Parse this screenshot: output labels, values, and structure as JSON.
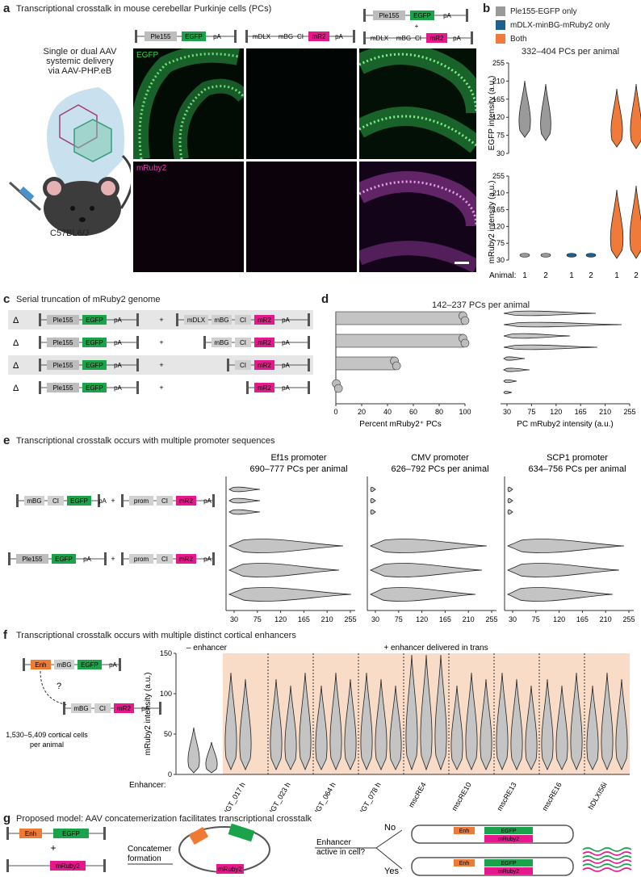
{
  "panel_labels": {
    "a": "a",
    "b": "b",
    "c": "c",
    "d": "d",
    "e": "e",
    "f": "f",
    "g": "g"
  },
  "a": {
    "title": "Transcriptional crosstalk in mouse cerebellar Purkinje cells (PCs)",
    "delivery_line1": "Single or dual AAV",
    "delivery_line2": "systemic delivery",
    "delivery_line3": "via AAV-PHP.eB",
    "strain": "C57BL6/J",
    "channel_egfp": "EGFP",
    "channel_mruby": "mRuby2",
    "construct1": [
      "Ple155",
      "EGFP",
      "pA"
    ],
    "construct2": [
      "mDLX",
      "mBG",
      "CI",
      "mR2",
      "pA"
    ],
    "plus": "+"
  },
  "b": {
    "legend": [
      "Ple155-EGFP only",
      "mDLX-minBG-mRuby2 only",
      "Both"
    ],
    "colors": {
      "egfp_only": "#9a9a9a",
      "mruby_only": "#1f5f8b",
      "both": "#f07a3a",
      "egfp": "#1aa34a",
      "mr2": "#e6198c"
    },
    "subtitle": "332–404 PCs per animal",
    "ylabel_top": "EGFP intensity (a.u.)",
    "ylabel_bottom": "mRuby2 intensity (a.u.)",
    "yticks": [
      "255",
      "210",
      "165",
      "120",
      "75",
      "30"
    ],
    "animal_label": "Animal:",
    "animals": [
      "1",
      "2",
      "1",
      "2",
      "1",
      "2"
    ]
  },
  "c": {
    "title": "Serial truncation of mRuby2 genome",
    "rows": [
      {
        "label": "Δ",
        "sub": "0",
        "right": [
          "mDLX",
          "mBG",
          "CI",
          "mR2",
          "pA"
        ]
      },
      {
        "label": "Δ",
        "sub": "i",
        "right": [
          "mBG",
          "CI",
          "mR2",
          "pA"
        ]
      },
      {
        "label": "Δ",
        "sub": "ii",
        "right": [
          "CI",
          "mR2",
          "pA"
        ]
      },
      {
        "label": "Δ",
        "sub": "iii",
        "right": [
          "mR2",
          "pA"
        ]
      }
    ],
    "left": [
      "Ple155",
      "EGFP",
      "pA"
    ],
    "plus": "+"
  },
  "d": {
    "subtitle": "142–237 PCs per animal",
    "xlabel_left": "Percent mRuby2⁺ PCs",
    "xticks_left": [
      "0",
      "20",
      "40",
      "60",
      "80",
      "100"
    ],
    "xlabel_right": "PC mRuby2 intensity (a.u.)",
    "xticks_right": [
      "30",
      "75",
      "120",
      "165",
      "210",
      "255"
    ]
  },
  "e": {
    "title": "Transcriptional crosstalk occurs with multiple promoter sequences",
    "groups": [
      {
        "name": "Ef1s promoter",
        "count": "690–777 PCs per animal"
      },
      {
        "name": "CMV promoter",
        "count": "626–792 PCs per animal"
      },
      {
        "name": "SCP1 promoter",
        "count": "634–756 PCs per animal"
      }
    ],
    "construct_top_left": [
      "mBG",
      "CI",
      "EGFP",
      "pA"
    ],
    "construct_bottom_left": [
      "Ple155",
      "EGFP",
      "pA"
    ],
    "construct_right": [
      "prom",
      "CI",
      "mR2",
      "pA"
    ],
    "plus": "+",
    "xticks": [
      "30",
      "75",
      "120",
      "165",
      "210",
      "255"
    ],
    "xlabel": "PC mRuby2 intensity (a.u.)"
  },
  "f": {
    "title": "Transcriptional crosstalk occurs with multiple distinct cortical enhancers",
    "construct_top": [
      "Enh",
      "mBG",
      "EGFP",
      "pA"
    ],
    "construct_bottom": [
      "mBG",
      "CI",
      "mR2",
      "pA"
    ],
    "question": "?",
    "cells_line1": "1,530–5,409 cortical cells",
    "cells_line2": "per animal",
    "minus_label": "– enhancer",
    "plus_label": "+ enhancer delivered in trans",
    "ylabel": "mRuby2 intensity (a.u.)",
    "yticks": [
      "0",
      "50",
      "100",
      "150"
    ],
    "enhancer_label": "Enhancer:",
    "enhancers": [
      "eHGT_017 h",
      "eHGT_023 h",
      "eHGT_064 h",
      "eHGT_078 h",
      "mscRE4",
      "mscRE10",
      "mscRE13",
      "mscRE16",
      "hDLXI56i"
    ]
  },
  "g": {
    "title": "Proposed model: AAV concatemerization facilitates transcriptional crosstalk",
    "enh": "Enh",
    "egfp": "EGFP",
    "mruby2": "mRuby2",
    "plus": "+",
    "concat_line1": "Concatemer",
    "concat_line2": "formation",
    "question_line1": "Enhancer",
    "question_line2": "active in cell?",
    "no": "No",
    "yes": "Yes"
  }
}
